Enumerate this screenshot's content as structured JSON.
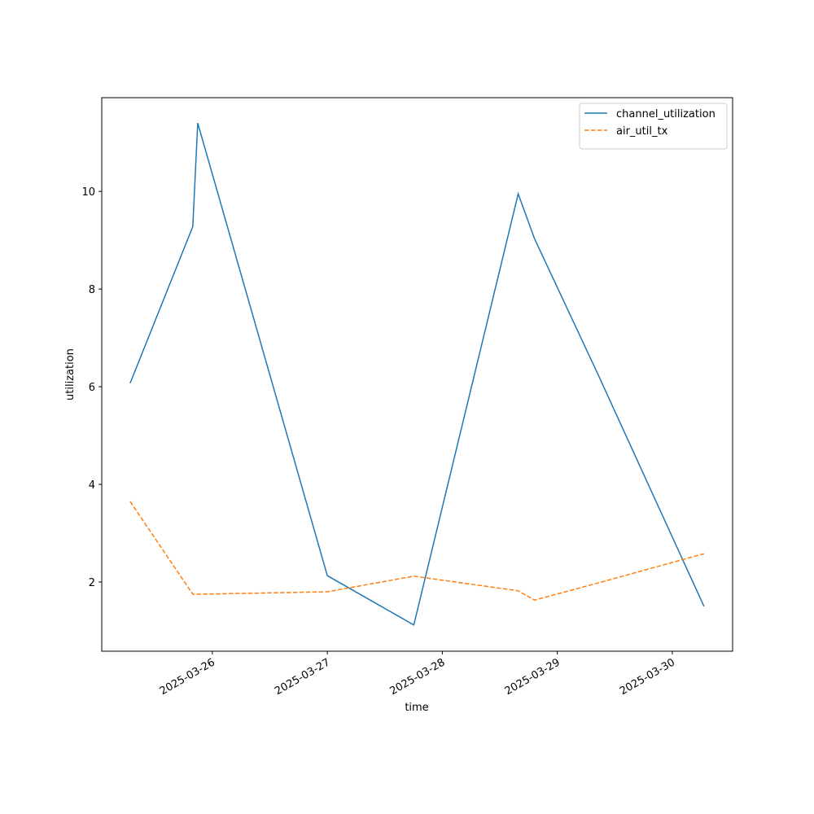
{
  "chart_data": {
    "type": "line",
    "x": [
      "2025-03-25 06:50",
      "2025-03-25 19:55",
      "2025-03-25 20:57",
      "2025-03-27 00:00",
      "2025-03-27 18:03",
      "2025-03-28 15:50",
      "2025-03-28 19:15",
      "2025-03-29 08:30",
      "2025-03-30 06:37"
    ],
    "series": [
      {
        "name": "channel_utilization",
        "color": "#1f77b4",
        "dash": "solid",
        "values": [
          6.07,
          9.28,
          11.4,
          2.13,
          1.12,
          9.95,
          9.03,
          6.25,
          1.5
        ]
      },
      {
        "name": "air_util_tx",
        "color": "#ff7f0e",
        "dash": "dashed",
        "values": [
          3.65,
          1.75,
          1.75,
          1.8,
          2.12,
          1.82,
          1.63,
          1.98,
          2.58
        ]
      }
    ],
    "xlabel": "time",
    "ylabel": "utilization",
    "xlim": [
      "2025-03-25 00:55",
      "2025-03-30 12:35"
    ],
    "xticks": [
      "2025-03-26",
      "2025-03-27",
      "2025-03-28",
      "2025-03-29",
      "2025-03-30"
    ],
    "ylim": [
      0.583,
      11.92
    ],
    "yticks": [
      2,
      4,
      6,
      8,
      10
    ],
    "legend": "upper right"
  }
}
